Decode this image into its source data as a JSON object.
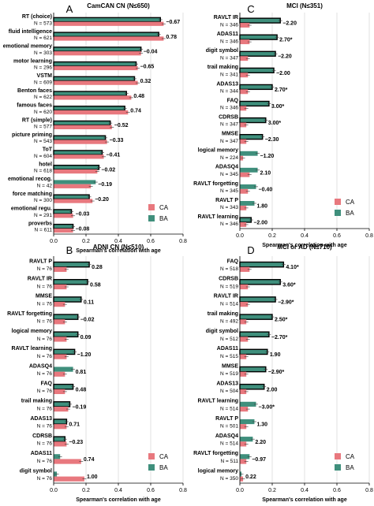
{
  "legend": {
    "ca": "CA",
    "ba": "BA"
  },
  "colors": {
    "ca": "#e8787e",
    "ba": "#3f8f7c",
    "border": "#000000",
    "grid": "#cccccc"
  },
  "chart_data": [
    {
      "type": "bar",
      "panel": "A",
      "title": "CamCAN CN (N≤650)",
      "xlabel": "Spearman's correlation with age",
      "xlim": [
        0,
        0.8
      ],
      "xticks": [
        "0.0",
        "0.2",
        "0.4",
        "0.6",
        "0.8"
      ],
      "legend_position": "bottom-right",
      "categories": [
        "RT (choice)",
        "fluid intelligence",
        "emotional memory",
        "motor learning",
        "VSTM",
        "Benton faces",
        "famous faces",
        "RT (simple)",
        "picture priming",
        "ToT",
        "hotel",
        "emotional recog.",
        "force matching",
        "emotional regu.",
        "proverbs"
      ],
      "n": [
        "N = 573",
        "N = 621",
        "N = 303",
        "N = 296",
        "N = 609",
        "N = 622",
        "N = 620",
        "N = 577",
        "N = 543",
        "N = 604",
        "N = 618",
        "N = 42",
        "N = 300",
        "N = 291",
        "N = 611"
      ],
      "series": [
        {
          "name": "CA",
          "values": [
            0.68,
            0.68,
            0.54,
            0.52,
            0.52,
            0.48,
            0.46,
            0.36,
            0.33,
            0.31,
            0.27,
            0.23,
            0.24,
            0.12,
            0.12
          ]
        },
        {
          "name": "BA",
          "values": [
            0.66,
            0.65,
            0.54,
            0.51,
            0.5,
            0.45,
            0.44,
            0.35,
            0.32,
            0.3,
            0.28,
            0.26,
            0.22,
            0.11,
            0.12
          ]
        }
      ],
      "highlight": [
        true,
        true,
        true,
        true,
        true,
        true,
        true,
        true,
        true,
        true,
        true,
        false,
        true,
        true,
        true
      ],
      "labels": [
        "−0.67",
        "0.78",
        "−0.04",
        "−0.65",
        "0.32",
        "0.48",
        "0.74",
        "−0.52",
        "−0.33",
        "−0.41",
        "−0.02",
        "−0.19",
        "−0.20",
        "−0.03",
        "−0.08"
      ]
    },
    {
      "type": "bar",
      "panel": "C",
      "title": "MCI (N≤351)",
      "xlabel": "Spearman's correlation with age",
      "xlim": [
        0,
        0.8
      ],
      "xticks": [
        "0.0",
        "0.2",
        "0.4",
        "0.6",
        "0.8"
      ],
      "legend_position": "bottom-right",
      "categories": [
        "RAVLT IR",
        "ADAS11",
        "digit symbol",
        "trail making",
        "ADAS13",
        "FAQ",
        "CDRSB",
        "MMSE",
        "logical memory",
        "ADASQ4",
        "RAVLT forgetting",
        "RAVLT P",
        "RAVLT learning"
      ],
      "n": [
        "N = 346",
        "N = 346",
        "N = 347",
        "N = 341",
        "N = 344",
        "N = 346",
        "N = 347",
        "N = 347",
        "N = 224",
        "N = 345",
        "N = 345",
        "N = 343",
        "N = 346"
      ],
      "series": [
        {
          "name": "CA",
          "values": [
            0.06,
            0.06,
            0.05,
            0.05,
            0.05,
            0.04,
            0.04,
            0.04,
            0.02,
            0.06,
            0.05,
            0.04,
            0.04
          ]
        },
        {
          "name": "BA",
          "values": [
            0.25,
            0.23,
            0.22,
            0.21,
            0.2,
            0.18,
            0.16,
            0.14,
            0.11,
            0.11,
            0.1,
            0.09,
            0.07
          ]
        }
      ],
      "highlight": [
        true,
        true,
        true,
        true,
        true,
        true,
        true,
        true,
        false,
        false,
        false,
        false,
        true
      ],
      "labels": [
        "−2.20",
        "2.70*",
        "−2.20",
        "−2.00",
        "2.70*",
        "3.00*",
        "3.00*",
        "−2.30",
        "−1.20",
        "2.10",
        "−0.40",
        "1.80",
        "−2.00"
      ]
    },
    {
      "type": "bar",
      "panel": "B",
      "title": "ADNI CN (N≤510)",
      "xlabel": "Spearman's correlation with age",
      "xlim": [
        0,
        0.8
      ],
      "xticks": [
        "0.0",
        "0.2",
        "0.4",
        "0.6",
        "0.8"
      ],
      "legend_position": "bottom-right",
      "categories": [
        "RAVLT P",
        "RAVLT IR",
        "MMSE",
        "RAVLT forgetting",
        "logical memory",
        "RAVLT learning",
        "ADASQ4",
        "FAQ",
        "trail making",
        "ADAS13",
        "CDRSB",
        "ADAS11",
        "digit symbol"
      ],
      "n": [
        "N = 76",
        "N = 76",
        "N = 76",
        "N = 76",
        "N = 76",
        "N = 76",
        "N = 76",
        "N = 76",
        "N = 76",
        "N = 76",
        "N = 76",
        "N = 76",
        "N = 76"
      ],
      "series": [
        {
          "name": "CA",
          "values": [
            0.08,
            0.08,
            0.07,
            0.07,
            0.08,
            0.08,
            0.07,
            0.07,
            0.09,
            0.08,
            0.08,
            0.17,
            0.19
          ]
        },
        {
          "name": "BA",
          "values": [
            0.22,
            0.21,
            0.17,
            0.15,
            0.15,
            0.13,
            0.12,
            0.12,
            0.1,
            0.08,
            0.07,
            0.04,
            0.02
          ]
        }
      ],
      "highlight": [
        true,
        true,
        true,
        true,
        true,
        true,
        false,
        true,
        true,
        true,
        true,
        false,
        false
      ],
      "labels": [
        "0.28",
        "0.58",
        "0.11",
        "−0.02",
        "0.09",
        "−1.20",
        "0.81",
        "0.48",
        "−0.19",
        "0.71",
        "−0.23",
        "0.74",
        "1.00"
      ]
    },
    {
      "type": "bar",
      "panel": "D",
      "title": "MCI or AD (N≤710)",
      "xlabel": "Spearman's correlation with age",
      "xlim": [
        0,
        0.8
      ],
      "xticks": [
        "0.0",
        "0.2",
        "0.4",
        "0.6",
        "0.8"
      ],
      "legend_position": "bottom-right",
      "categories": [
        "FAQ",
        "CDRSB",
        "RAVLT IR",
        "trail making",
        "digit symbol",
        "ADAS11",
        "MMSE",
        "ADAS13",
        "RAVLT learning",
        "RAVLT P",
        "ADASQ4",
        "RAVLT forgetting",
        "logical memory"
      ],
      "n": [
        "N = 518",
        "N = 519",
        "N = 514",
        "N = 492",
        "N = 512",
        "N = 515",
        "N = 519",
        "N = 504",
        "N = 514",
        "N = 501",
        "N = 514",
        "N = 511",
        "N = 350"
      ],
      "series": [
        {
          "name": "CA",
          "values": [
            0.06,
            0.05,
            0.05,
            0.04,
            0.05,
            0.04,
            0.04,
            0.04,
            0.05,
            0.04,
            0.04,
            0.04,
            0.02
          ]
        },
        {
          "name": "BA",
          "values": [
            0.27,
            0.25,
            0.22,
            0.2,
            0.18,
            0.17,
            0.16,
            0.15,
            0.1,
            0.09,
            0.08,
            0.06,
            0.01
          ]
        }
      ],
      "highlight": [
        true,
        true,
        true,
        true,
        true,
        true,
        true,
        true,
        false,
        false,
        false,
        false,
        false
      ],
      "labels": [
        "4.10*",
        "3.60*",
        "−2.90*",
        "2.50*",
        "−2.70*",
        "1.90",
        "−2.90*",
        "2.00",
        "−3.00*",
        "1.30",
        "2.20",
        "−0.97",
        "0.22"
      ]
    }
  ]
}
